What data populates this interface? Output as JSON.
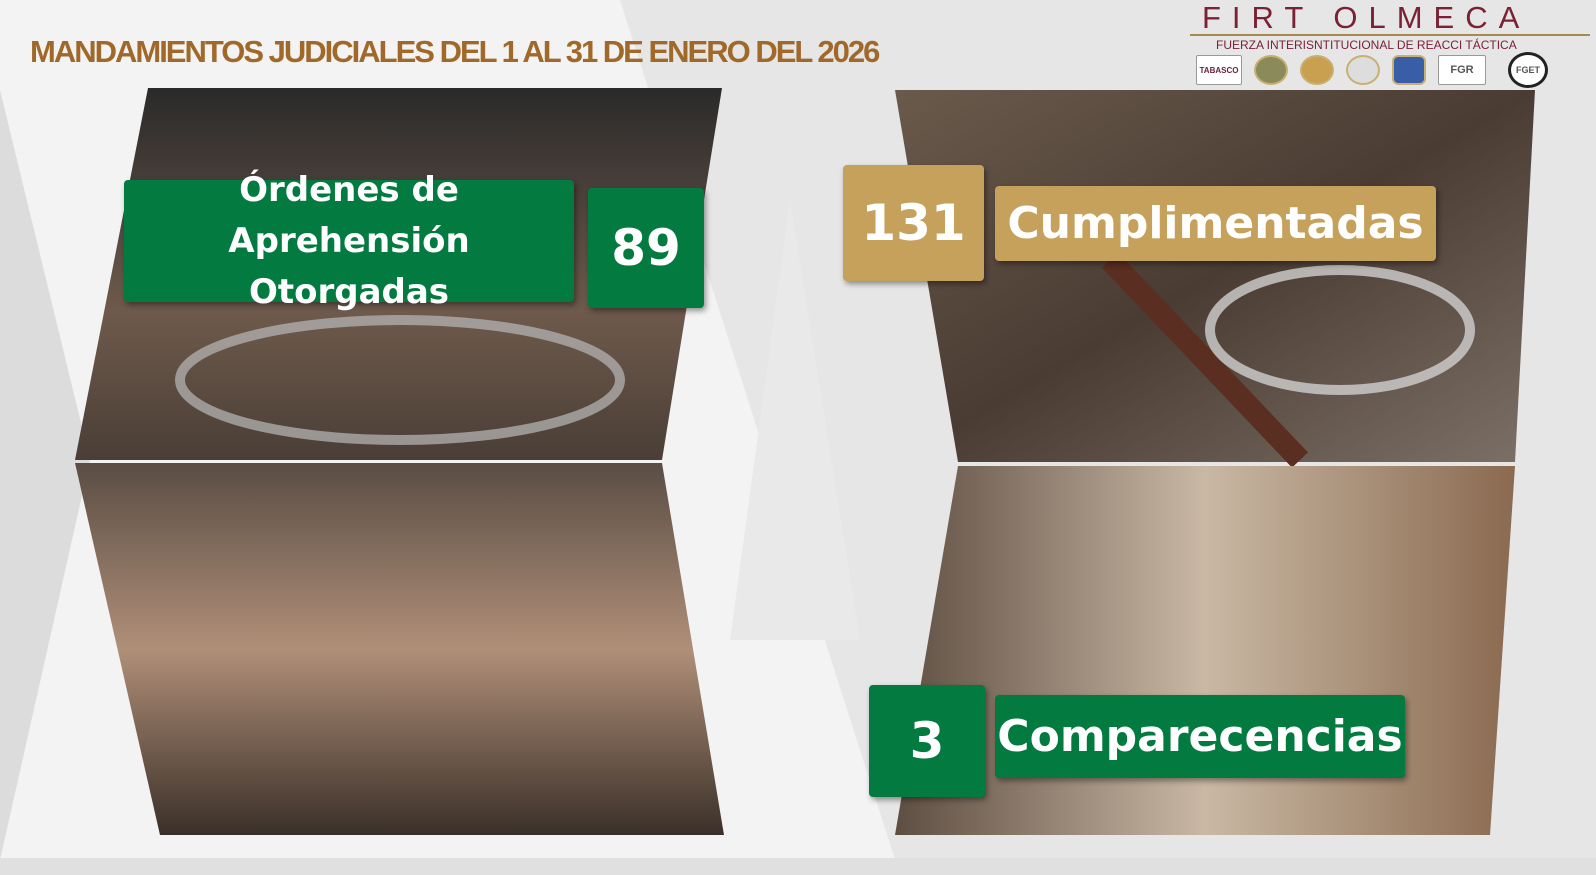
{
  "header": {
    "title": "MANDAMIENTOS JUDICIALES DEL 1 AL 31 DE ENERO DEL 2026",
    "brand_name": "FIRT OLMECA",
    "brand_subtitle": "FUERZA INTERISNTITUCIONAL DE REACCI TÁCTICA",
    "logos": [
      "TABASCO",
      "seal-1",
      "seal-2",
      "seal-3",
      "police-star",
      "FGR",
      "FGET"
    ]
  },
  "stats": {
    "ordenes": {
      "label": "Órdenes de Aprehensión Otorgadas",
      "value": "89"
    },
    "cumplimentadas": {
      "label": "Cumplimentadas",
      "value": "131"
    },
    "comparecencias": {
      "label": "Comparecencias",
      "value": "3"
    }
  },
  "colors": {
    "green": "#037a3f",
    "gold": "#c6a15b",
    "title": "#a0692a",
    "brand": "#7a2135"
  }
}
